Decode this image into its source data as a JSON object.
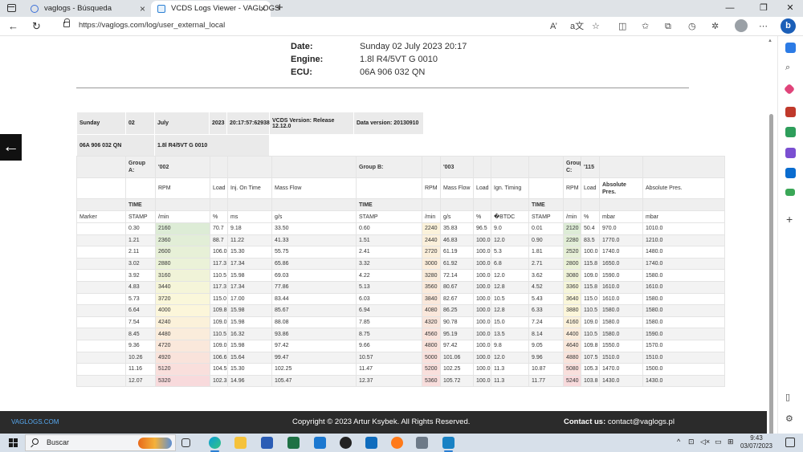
{
  "browser": {
    "tabs": [
      {
        "title": "vaglogs - Búsqueda"
      },
      {
        "title": "VCDS Logs Viewer - VAGLOGS"
      }
    ],
    "url": "https://vaglogs.com/log/user_external_local",
    "reader_icon": "A’",
    "translate_icon": "a文"
  },
  "info": {
    "date_label": "Date:",
    "date_value": "Sunday 02 July 2023 20:17",
    "engine_label": "Engine:",
    "engine_value": "1.8l R4/5VT G 0010",
    "ecu_label": "ECU:",
    "ecu_value": "06A 906 032 QN"
  },
  "meta": {
    "day": "Sunday",
    "daynum": "02",
    "month": "July",
    "year": "2023",
    "time": "20:17:57:62938",
    "vcds_version": "VCDS Version: Release 12.12.0",
    "data_version": "Data version: 20130910",
    "ecu": "06A 906 032 QN",
    "engine": "1.8l R4/5VT G 0010"
  },
  "table": {
    "group_a_label": "Group A:",
    "group_a_num": "'002",
    "group_b_label": "Group B:",
    "group_b_num": "'003",
    "group_c_label": "Group C:",
    "group_c_num": "'115",
    "cols": {
      "rpm": "RPM",
      "load": "Load",
      "inj": "Inj. On Time",
      "massflow": "Mass Flow",
      "massflow2": "Mass Flow",
      "ign": "Ign. Timing",
      "abs1": "Absolute Pres.",
      "abs2": "Absolute Pres."
    },
    "time": "TIME",
    "marker": "Marker",
    "stamp": "STAMP",
    "units": {
      "rpm": "/min",
      "pct": "%",
      "ms": "ms",
      "gs": "g/s",
      "btdc": "�BTDC",
      "mbar": "mbar"
    },
    "rows": [
      [
        "0.30",
        "2160",
        "70.7",
        "9.18",
        "33.50",
        "0.60",
        "2240",
        "35.83",
        "96.5",
        "9.0",
        "0.01",
        "2120",
        "50.4",
        "970.0",
        "1010.0"
      ],
      [
        "1.21",
        "2360",
        "88.7",
        "11.22",
        "41.33",
        "1.51",
        "2440",
        "46.83",
        "100.0",
        "12.0",
        "0.90",
        "2280",
        "83.5",
        "1770.0",
        "1210.0"
      ],
      [
        "2.11",
        "2600",
        "106.0",
        "15.30",
        "55.75",
        "2.41",
        "2720",
        "61.19",
        "100.0",
        "5.3",
        "1.81",
        "2520",
        "100.0",
        "1740.0",
        "1480.0"
      ],
      [
        "3.02",
        "2880",
        "117.3",
        "17.34",
        "65.86",
        "3.32",
        "3000",
        "61.92",
        "100.0",
        "6.8",
        "2.71",
        "2800",
        "115.8",
        "1650.0",
        "1740.0"
      ],
      [
        "3.92",
        "3160",
        "110.5",
        "15.98",
        "69.03",
        "4.22",
        "3280",
        "72.14",
        "100.0",
        "12.0",
        "3.62",
        "3080",
        "109.0",
        "1590.0",
        "1580.0"
      ],
      [
        "4.83",
        "3440",
        "117.3",
        "17.34",
        "77.86",
        "5.13",
        "3560",
        "80.67",
        "100.0",
        "12.8",
        "4.52",
        "3360",
        "115.8",
        "1610.0",
        "1610.0"
      ],
      [
        "5.73",
        "3720",
        "115.0",
        "17.00",
        "83.44",
        "6.03",
        "3840",
        "82.67",
        "100.0",
        "10.5",
        "5.43",
        "3640",
        "115.0",
        "1610.0",
        "1580.0"
      ],
      [
        "6.64",
        "4000",
        "109.8",
        "15.98",
        "85.67",
        "6.94",
        "4080",
        "86.25",
        "100.0",
        "12.8",
        "6.33",
        "3880",
        "110.5",
        "1580.0",
        "1580.0"
      ],
      [
        "7.54",
        "4240",
        "109.0",
        "15.98",
        "88.08",
        "7.85",
        "4320",
        "90.78",
        "100.0",
        "15.0",
        "7.24",
        "4160",
        "109.0",
        "1580.0",
        "1580.0"
      ],
      [
        "8.45",
        "4480",
        "110.5",
        "16.32",
        "93.86",
        "8.75",
        "4560",
        "95.19",
        "100.0",
        "13.5",
        "8.14",
        "4400",
        "110.5",
        "1580.0",
        "1590.0"
      ],
      [
        "9.36",
        "4720",
        "109.0",
        "15.98",
        "97.42",
        "9.66",
        "4800",
        "97.42",
        "100.0",
        "9.8",
        "9.05",
        "4640",
        "109.8",
        "1550.0",
        "1570.0"
      ],
      [
        "10.26",
        "4920",
        "106.6",
        "15.64",
        "99.47",
        "10.57",
        "5000",
        "101.06",
        "100.0",
        "12.0",
        "9.96",
        "4880",
        "107.5",
        "1510.0",
        "1510.0"
      ],
      [
        "11.16",
        "5120",
        "104.5",
        "15.30",
        "102.25",
        "11.47",
        "5200",
        "102.25",
        "100.0",
        "11.3",
        "10.87",
        "5080",
        "105.3",
        "1470.0",
        "1500.0"
      ],
      [
        "12.07",
        "5320",
        "102.3",
        "14.96",
        "105.47",
        "12.37",
        "5360",
        "105.72",
        "100.0",
        "11.3",
        "11.77",
        "5240",
        "103.8",
        "1430.0",
        "1430.0"
      ]
    ]
  },
  "footer": {
    "brand": "VAGLOGS.COM",
    "copyright": "Copyright © 2023 Artur Ksybek. All Rights Reserved.",
    "contact_label": "Contact us:",
    "contact_email": " contact@vaglogs.pl"
  },
  "taskbar": {
    "search_placeholder": "Buscar",
    "time": "9:43",
    "date": "03/07/2023"
  }
}
